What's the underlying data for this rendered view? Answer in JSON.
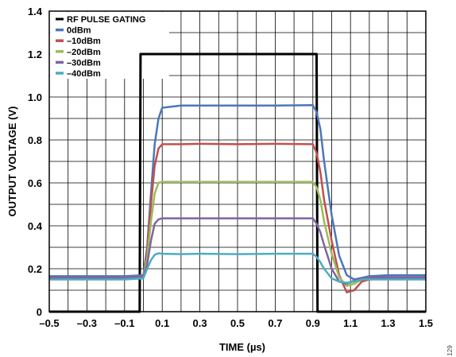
{
  "figure_id": "129",
  "chart_data": {
    "type": "line",
    "xlabel": "TIME (µs)",
    "ylabel": "OUTPUT VOLTAGE (V)",
    "xlim": [
      -0.5,
      1.5
    ],
    "ylim": [
      0,
      1.4
    ],
    "x_ticks": [
      -0.5,
      -0.3,
      -0.1,
      0.1,
      0.3,
      0.5,
      0.7,
      0.9,
      1.1,
      1.3,
      1.5
    ],
    "x_tick_labels": [
      "–0.5",
      "–0.3",
      "–0.1",
      "0.1",
      "0.3",
      "0.5",
      "0.7",
      "0.9",
      "1.1",
      "1.3",
      "1.5"
    ],
    "y_ticks": [
      0,
      0.2,
      0.4,
      0.6,
      0.8,
      1.0,
      1.2,
      1.4
    ],
    "y_tick_labels": [
      "0",
      "0.2",
      "0.4",
      "0.6",
      "0.8",
      "1.0",
      "1.2",
      "1.4"
    ],
    "x_minor_step": 0.1,
    "y_minor_step": 0.1,
    "grid": true,
    "legend_position": "top-left",
    "series": [
      {
        "name": "RF PULSE GATING",
        "color": "#000000",
        "width": 3,
        "x": [
          -0.5,
          -0.02,
          -0.015,
          0.92,
          0.925,
          1.5
        ],
        "y": [
          0,
          0,
          1.2,
          1.2,
          0,
          0
        ]
      },
      {
        "name": "0dBm",
        "color": "#4a78b8",
        "width": 2.5,
        "x": [
          -0.5,
          -0.1,
          0.0,
          0.02,
          0.04,
          0.06,
          0.08,
          0.1,
          0.2,
          0.3,
          0.5,
          0.7,
          0.9,
          0.92,
          0.94,
          0.96,
          1.0,
          1.04,
          1.08,
          1.12,
          1.2,
          1.3,
          1.5
        ],
        "y": [
          0.165,
          0.165,
          0.17,
          0.3,
          0.55,
          0.78,
          0.9,
          0.95,
          0.96,
          0.96,
          0.96,
          0.96,
          0.962,
          0.93,
          0.85,
          0.7,
          0.45,
          0.26,
          0.17,
          0.15,
          0.165,
          0.17,
          0.17
        ]
      },
      {
        "name": "–10dBm",
        "color": "#c0504d",
        "width": 2.5,
        "x": [
          -0.5,
          -0.1,
          0.0,
          0.02,
          0.04,
          0.06,
          0.08,
          0.1,
          0.2,
          0.3,
          0.5,
          0.7,
          0.9,
          0.92,
          0.94,
          0.96,
          1.0,
          1.04,
          1.08,
          1.12,
          1.16,
          1.2,
          1.3,
          1.5
        ],
        "y": [
          0.155,
          0.155,
          0.16,
          0.28,
          0.5,
          0.68,
          0.76,
          0.78,
          0.78,
          0.782,
          0.78,
          0.782,
          0.78,
          0.74,
          0.65,
          0.52,
          0.33,
          0.17,
          0.09,
          0.1,
          0.14,
          0.15,
          0.155,
          0.155
        ]
      },
      {
        "name": "–20dBm",
        "color": "#9bbb59",
        "width": 2.5,
        "x": [
          -0.5,
          -0.1,
          0.0,
          0.02,
          0.04,
          0.06,
          0.08,
          0.1,
          0.2,
          0.3,
          0.5,
          0.7,
          0.9,
          0.92,
          0.94,
          0.96,
          1.0,
          1.04,
          1.08,
          1.12,
          1.16,
          1.2,
          1.3,
          1.5
        ],
        "y": [
          0.16,
          0.16,
          0.165,
          0.25,
          0.42,
          0.55,
          0.6,
          0.605,
          0.605,
          0.605,
          0.605,
          0.605,
          0.605,
          0.58,
          0.52,
          0.42,
          0.27,
          0.16,
          0.12,
          0.13,
          0.15,
          0.16,
          0.16,
          0.16
        ]
      },
      {
        "name": "–30dBm",
        "color": "#7f64a2",
        "width": 2.5,
        "x": [
          -0.5,
          -0.1,
          0.0,
          0.02,
          0.04,
          0.06,
          0.08,
          0.1,
          0.2,
          0.3,
          0.5,
          0.7,
          0.9,
          0.92,
          0.94,
          0.96,
          1.0,
          1.04,
          1.08,
          1.12,
          1.16,
          1.2,
          1.3,
          1.5
        ],
        "y": [
          0.16,
          0.16,
          0.165,
          0.22,
          0.33,
          0.41,
          0.43,
          0.435,
          0.435,
          0.435,
          0.435,
          0.435,
          0.435,
          0.41,
          0.37,
          0.31,
          0.2,
          0.14,
          0.13,
          0.145,
          0.155,
          0.16,
          0.16,
          0.16
        ]
      },
      {
        "name": "–40dBm",
        "color": "#4bacc6",
        "width": 2.5,
        "x": [
          -0.5,
          -0.1,
          0.0,
          0.02,
          0.04,
          0.06,
          0.08,
          0.1,
          0.2,
          0.3,
          0.5,
          0.7,
          0.9,
          0.92,
          0.94,
          0.96,
          1.0,
          1.04,
          1.08,
          1.12,
          1.16,
          1.2,
          1.3,
          1.5
        ],
        "y": [
          0.15,
          0.15,
          0.155,
          0.2,
          0.24,
          0.265,
          0.272,
          0.27,
          0.268,
          0.27,
          0.268,
          0.27,
          0.27,
          0.255,
          0.23,
          0.2,
          0.155,
          0.14,
          0.135,
          0.14,
          0.15,
          0.15,
          0.15,
          0.15
        ]
      }
    ]
  }
}
